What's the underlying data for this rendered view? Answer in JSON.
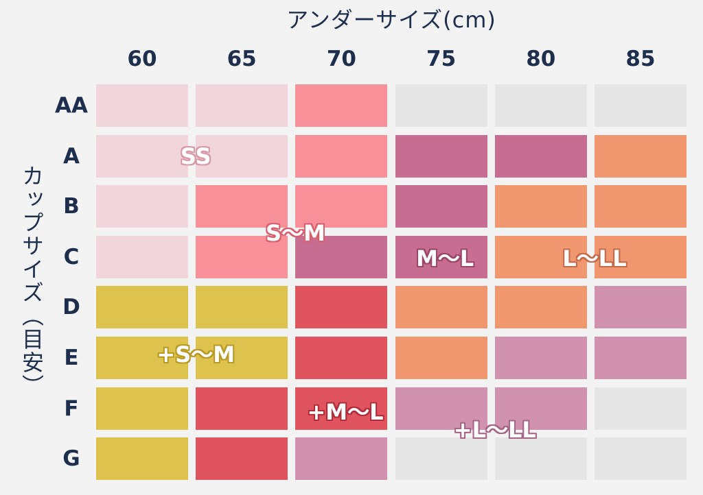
{
  "chart_data": {
    "type": "heatmap",
    "xlabel": "アンダーサイズ(cm)",
    "ylabel": "カップサイズ（目安）",
    "columns": [
      "60",
      "65",
      "70",
      "75",
      "80",
      "85"
    ],
    "rows": [
      "AA",
      "A",
      "B",
      "C",
      "D",
      "E",
      "F",
      "G"
    ],
    "zones": {
      "SS": {
        "label": "SS",
        "color": "#f0d6da",
        "outline": "#d89aa8"
      },
      "S-M": {
        "label": "S〜M",
        "color": "#f8909a",
        "outline": "#d85f6e"
      },
      "M-L": {
        "label": "M〜L",
        "color": "#c76d91",
        "outline": "#9c4468"
      },
      "L-LL": {
        "label": "L〜LL",
        "color": "#f0976f",
        "outline": "#c26a4a"
      },
      "+S-M": {
        "label": "+S〜M",
        "color": "#dec24e",
        "outline": "#b89a24"
      },
      "+M-L": {
        "label": "+M〜L",
        "color": "#e05460",
        "outline": "#b02c3a"
      },
      "+L-LL": {
        "label": "+L〜LL",
        "color": "#d192b0",
        "outline": "#a86486"
      },
      "none": {
        "label": "",
        "color": "#e5e5e6",
        "outline": ""
      }
    },
    "cells": [
      [
        "SS",
        "SS",
        "S-M",
        "none",
        "none",
        "none"
      ],
      [
        "SS",
        "SS",
        "S-M",
        "M-L",
        "M-L",
        "L-LL"
      ],
      [
        "SS",
        "S-M",
        "S-M",
        "M-L",
        "L-LL",
        "L-LL"
      ],
      [
        "SS",
        "S-M",
        "M-L",
        "M-L",
        "L-LL",
        "L-LL"
      ],
      [
        "+S-M",
        "+S-M",
        "+M-L",
        "L-LL",
        "L-LL",
        "+L-LL"
      ],
      [
        "+S-M",
        "+S-M",
        "+M-L",
        "L-LL",
        "+L-LL",
        "+L-LL"
      ],
      [
        "+S-M",
        "+M-L",
        "+M-L",
        "+L-LL",
        "+L-LL",
        "none"
      ],
      [
        "+S-M",
        "+M-L",
        "+L-LL",
        "none",
        "none",
        "none"
      ]
    ],
    "zone_labels": [
      {
        "zone": "SS",
        "col": 1.0,
        "row": 1.0
      },
      {
        "zone": "S-M",
        "col": 2.0,
        "row": 2.5
      },
      {
        "zone": "M-L",
        "col": 3.5,
        "row": 3.0
      },
      {
        "zone": "L-LL",
        "col": 5.0,
        "row": 3.0
      },
      {
        "zone": "+S-M",
        "col": 1.0,
        "row": 4.9
      },
      {
        "zone": "+M-L",
        "col": 2.5,
        "row": 6.05
      },
      {
        "zone": "+L-LL",
        "col": 4.0,
        "row": 6.4
      }
    ]
  }
}
